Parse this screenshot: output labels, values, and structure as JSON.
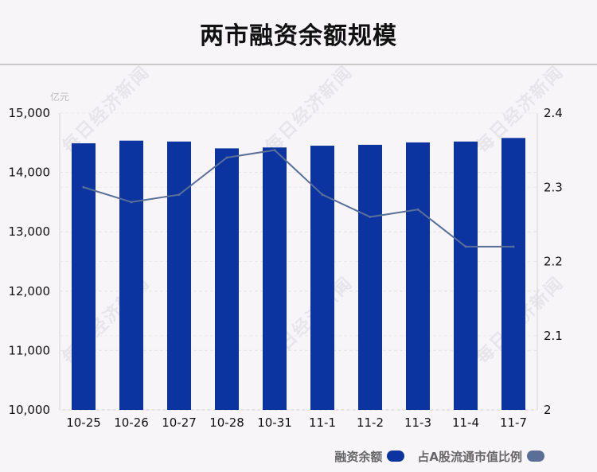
{
  "title": "两市融资余额规模",
  "watermark": "每日经济新闻",
  "chart_data": {
    "type": "bar",
    "categories": [
      "10-25",
      "10-26",
      "10-27",
      "10-28",
      "10-31",
      "11-1",
      "11-2",
      "11-3",
      "11-4",
      "11-7"
    ],
    "series": [
      {
        "name": "融资余额",
        "type": "bar",
        "axis": "left",
        "color": "#0b34a0",
        "values": [
          14490,
          14535,
          14520,
          14405,
          14420,
          14450,
          14465,
          14505,
          14520,
          14580
        ]
      },
      {
        "name": "占A股流通市值比例",
        "type": "line",
        "axis": "right",
        "color": "#5a6f98",
        "values": [
          2.3,
          2.28,
          2.29,
          2.34,
          2.35,
          2.29,
          2.26,
          2.27,
          2.22,
          2.22
        ]
      }
    ],
    "y_left": {
      "unit": "亿元",
      "range": [
        10000,
        15000
      ],
      "ticks": [
        "10,000",
        "11,000",
        "12,000",
        "13,000",
        "14,000",
        "15,000"
      ]
    },
    "y_right": {
      "range": [
        2.0,
        2.4
      ],
      "ticks": [
        "2",
        "2.1",
        "2.2",
        "2.3",
        "2.4"
      ]
    },
    "grid": true,
    "legend_position": "bottom-right"
  }
}
